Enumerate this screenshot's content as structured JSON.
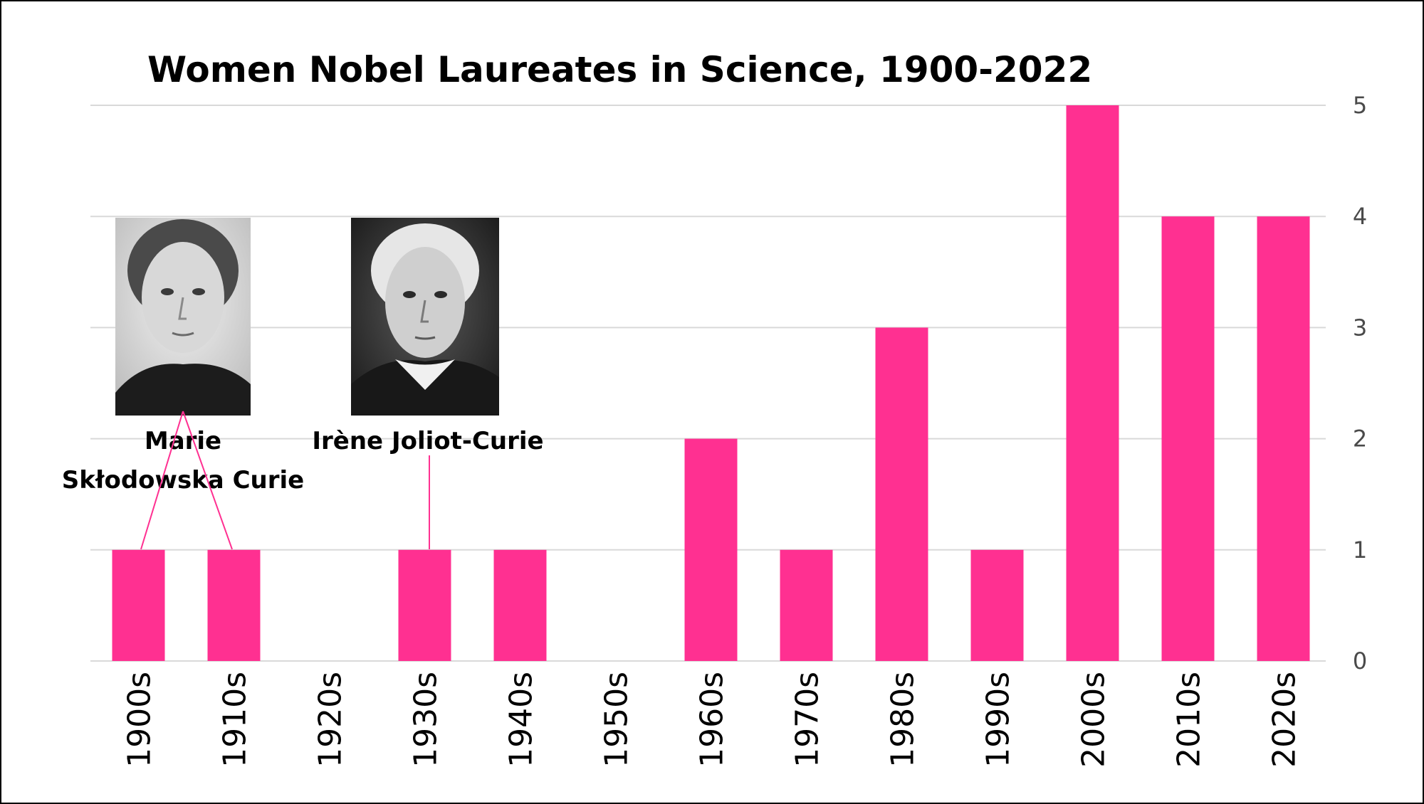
{
  "colors": {
    "bar": "#ff3091",
    "grid": "#d9d9d9",
    "leader": "#ff3091",
    "background": "#ffffff"
  },
  "chart_data": {
    "type": "bar",
    "title": "Women Nobel Laureates in Science, 1900-2022",
    "xlabel": "",
    "ylabel": "",
    "categories": [
      "1900s",
      "1910s",
      "1920s",
      "1930s",
      "1940s",
      "1950s",
      "1960s",
      "1970s",
      "1980s",
      "1990s",
      "2000s",
      "2010s",
      "2020s"
    ],
    "values": [
      1,
      1,
      0,
      1,
      1,
      0,
      2,
      1,
      3,
      1,
      5,
      4,
      4
    ],
    "ylim": [
      0,
      5
    ],
    "yticks": [
      "0",
      "1",
      "2",
      "3",
      "4",
      "5"
    ],
    "y_axis_position": "right",
    "grid": true,
    "annotations": [
      {
        "label_lines": [
          "Marie",
          "Skłodowska Curie"
        ],
        "image": "portrait-photo",
        "points_to": [
          "1900s",
          "1910s"
        ]
      },
      {
        "label_lines": [
          "Irène Joliot-Curie"
        ],
        "image": "portrait-photo",
        "points_to": [
          "1930s"
        ]
      }
    ]
  }
}
